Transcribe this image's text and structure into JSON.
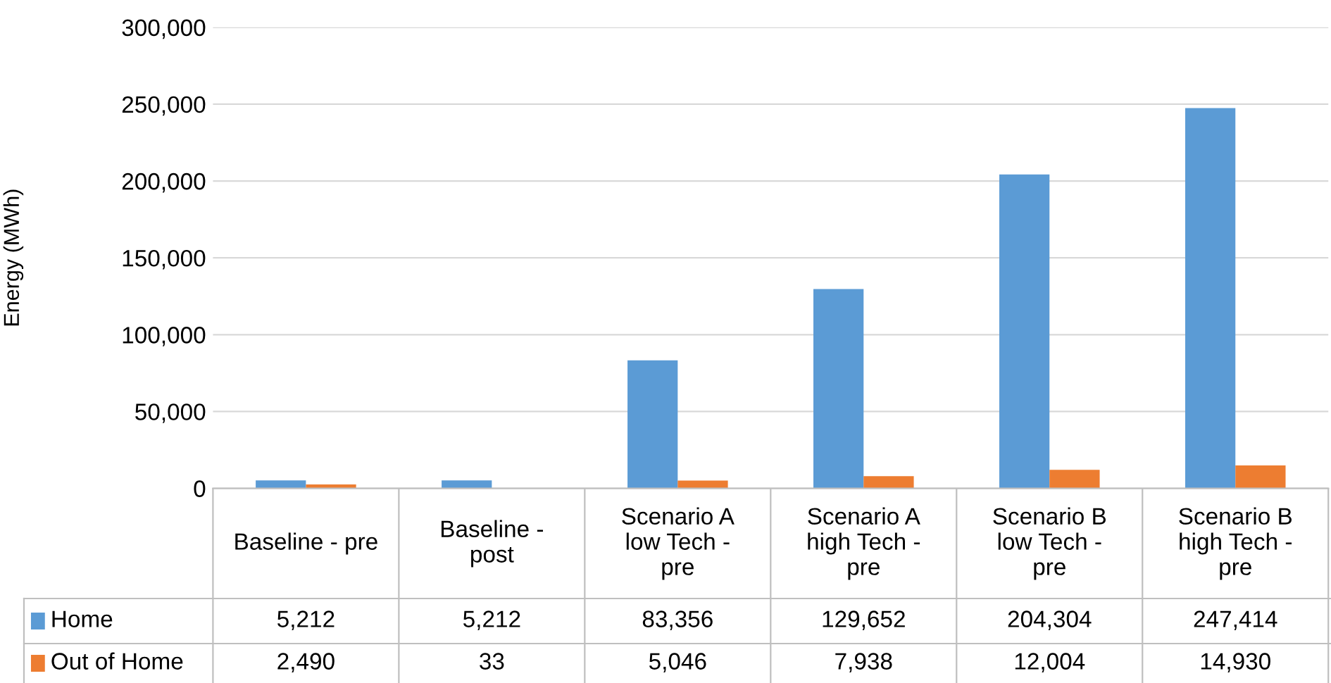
{
  "chart_data": {
    "type": "bar",
    "ylabel": "Energy (MWh)",
    "categories": [
      "Baseline - pre",
      "Baseline -\npost",
      "Scenario A\nlow Tech -\npre",
      "Scenario A\nhigh Tech -\npre",
      "Scenario B\nlow Tech -\npre",
      "Scenario B\nhigh Tech -\npre"
    ],
    "series": [
      {
        "name": "Home",
        "color": "#5b9bd5",
        "values": [
          5212,
          5212,
          83356,
          129652,
          204304,
          247414
        ],
        "value_labels": [
          "5,212",
          "5,212",
          "83,356",
          "129,652",
          "204,304",
          "247,414"
        ]
      },
      {
        "name": "Out of Home",
        "color": "#ed7d31",
        "values": [
          2490,
          33,
          5046,
          7938,
          12004,
          14930
        ],
        "value_labels": [
          "2,490",
          "33",
          "5,046",
          "7,938",
          "12,004",
          "14,930"
        ]
      }
    ],
    "ylim": [
      0,
      300000
    ],
    "yticks": [
      {
        "value": 0,
        "label": "0"
      },
      {
        "value": 50000,
        "label": "50,000"
      },
      {
        "value": 100000,
        "label": "100,000"
      },
      {
        "value": 150000,
        "label": "150,000"
      },
      {
        "value": 200000,
        "label": "200,000"
      },
      {
        "value": 250000,
        "label": "250,000"
      },
      {
        "value": 300000,
        "label": "300,000"
      }
    ],
    "grid": "y",
    "legend": "bottom"
  }
}
